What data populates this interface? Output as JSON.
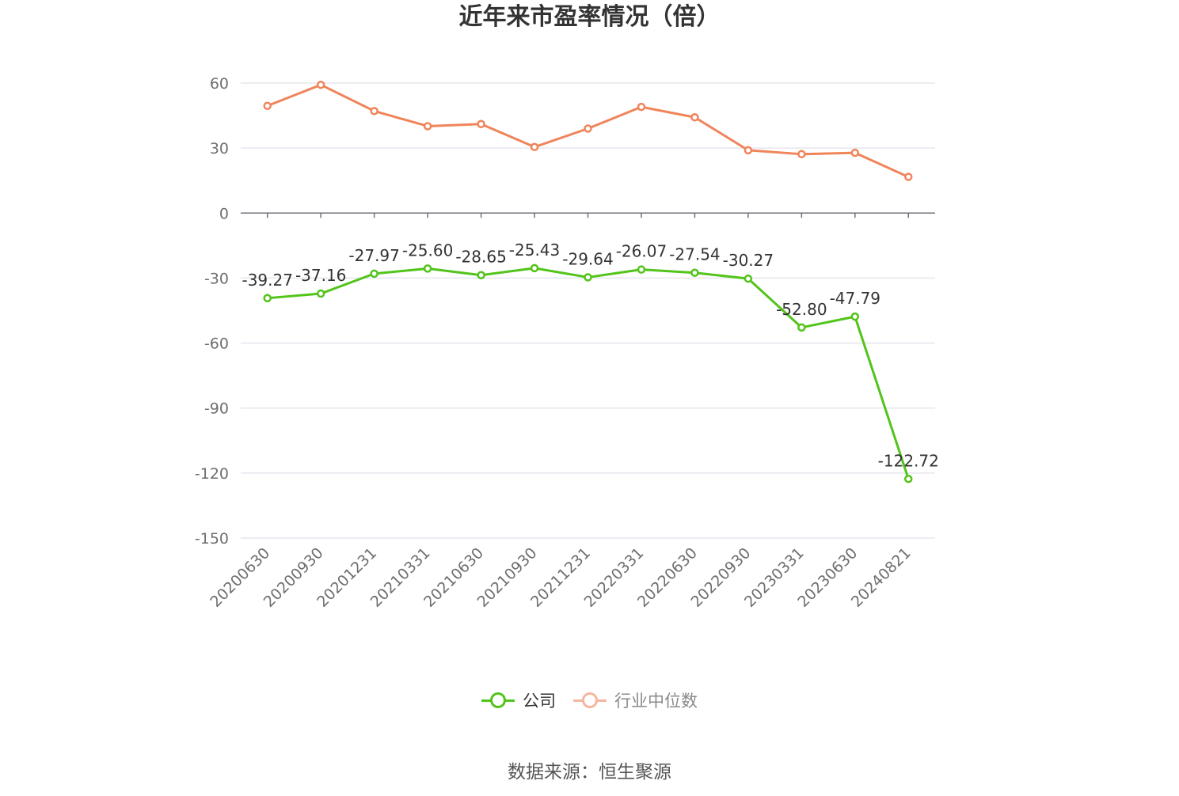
{
  "title": "近年来市盈率情况（倍）",
  "source": "数据来源：恒生聚源",
  "legend": [
    {
      "label": "公司",
      "color": "#52c41a",
      "active": true
    },
    {
      "label": "行业中位数",
      "color": "#f4b6a0",
      "active": false
    }
  ],
  "chart_data": {
    "type": "line",
    "categories": [
      "20200630",
      "20200930",
      "20201231",
      "20210331",
      "20210630",
      "20210930",
      "20211231",
      "20220331",
      "20220630",
      "20220930",
      "20230331",
      "20230630",
      "20240821"
    ],
    "ylim": [
      -150,
      60
    ],
    "yticks": [
      60,
      30,
      0,
      -30,
      -60,
      -90,
      -120,
      -150
    ],
    "grid": true,
    "legend_position": "bottom",
    "series": [
      {
        "name": "公司",
        "color": "#52c41a",
        "values": [
          -39.27,
          -37.16,
          -27.97,
          -25.6,
          -28.65,
          -25.43,
          -29.64,
          -26.07,
          -27.54,
          -30.27,
          -52.8,
          -47.79,
          -122.72
        ],
        "labels": [
          "-39.27",
          "-37.16",
          "-27.97",
          "-25.60",
          "-28.65",
          "-25.43",
          "-29.64",
          "-26.07",
          "-27.54",
          "-30.27",
          "-52.80",
          "-47.79",
          "-122.72"
        ]
      },
      {
        "name": "行业中位数",
        "color": "#f0845a",
        "values": [
          49.5,
          59.2,
          47.1,
          40.1,
          41.1,
          30.5,
          39.0,
          49.0,
          44.2,
          29.0,
          27.2,
          27.8,
          16.7
        ]
      }
    ]
  }
}
